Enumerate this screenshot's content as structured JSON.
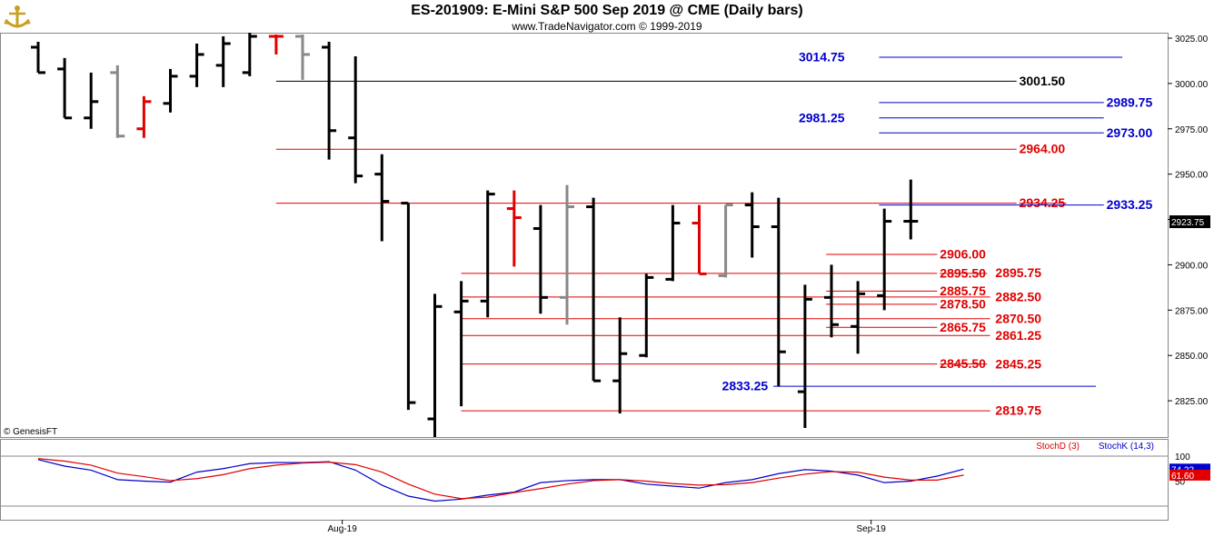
{
  "header": {
    "title": "ES-201909:  E-Mini S&P 500 Sep 2019 @ CME  (Daily bars)",
    "subtitle": "www.TradeNavigator.com © 1999-2019"
  },
  "copyright": "© GenesisFT",
  "colors": {
    "up": "#000000",
    "down": "#e00000",
    "neutral": "#888888",
    "support": "#e00000",
    "resist": "#0000cc",
    "stochK": "#0000cc",
    "stochD": "#e00000",
    "green": "#00c000"
  },
  "chart_data": [
    {
      "type": "ohlc",
      "title": "ES-201909:  E-Mini S&P 500 Sep 2019 @ CME  (Daily bars)",
      "ylim": [
        2805,
        3028
      ],
      "yticks": [
        "3025.00",
        "3000.00",
        "2975.00",
        "2950.00",
        "2925.00",
        "2900.00",
        "2875.00",
        "2850.00",
        "2825.00"
      ],
      "ytick_values": [
        3025,
        3000,
        2975,
        2950,
        2925,
        2900,
        2875,
        2850,
        2825
      ],
      "xticks": [
        {
          "label": "Aug-19",
          "index": 11.5
        },
        {
          "label": "Sep-19",
          "index": 31.5
        }
      ],
      "last_price": "2923.75",
      "bars": [
        {
          "o": 3020,
          "h": 3023,
          "l": 3006,
          "c": 3006,
          "col": "up"
        },
        {
          "o": 3008,
          "h": 3014,
          "l": 2981,
          "c": 2981,
          "col": "up"
        },
        {
          "o": 2981,
          "h": 3006,
          "l": 2975,
          "c": 2990,
          "col": "up"
        },
        {
          "o": 3006,
          "h": 3010,
          "l": 2970,
          "c": 2971,
          "col": "neutral"
        },
        {
          "o": 2975,
          "h": 2993,
          "l": 2970,
          "c": 2990,
          "col": "down"
        },
        {
          "o": 2989,
          "h": 3008,
          "l": 2984,
          "c": 3004,
          "col": "up"
        },
        {
          "o": 3004,
          "h": 3022,
          "l": 2998,
          "c": 3016,
          "col": "up"
        },
        {
          "o": 3010,
          "h": 3026,
          "l": 2998,
          "c": 3022,
          "col": "up"
        },
        {
          "o": 3006,
          "h": 3028,
          "l": 3004,
          "c": 3026,
          "col": "up"
        },
        {
          "o": 3026,
          "h": 3027,
          "l": 3016,
          "c": 3026,
          "col": "down"
        },
        {
          "o": 3026,
          "h": 3027,
          "l": 3002,
          "c": 3016,
          "col": "neutral"
        },
        {
          "o": 3020,
          "h": 3023,
          "l": 2958,
          "c": 2974,
          "col": "up"
        },
        {
          "o": 2970,
          "h": 3015,
          "l": 2945,
          "c": 2949,
          "col": "up"
        },
        {
          "o": 2950,
          "h": 2961,
          "l": 2913,
          "c": 2935,
          "col": "up"
        },
        {
          "o": 2934,
          "h": 2934,
          "l": 2820,
          "c": 2824,
          "col": "up"
        },
        {
          "o": 2815,
          "h": 2884,
          "l": 2805,
          "c": 2877,
          "col": "up"
        },
        {
          "o": 2874,
          "h": 2891,
          "l": 2822,
          "c": 2880,
          "col": "up"
        },
        {
          "o": 2880,
          "h": 2941,
          "l": 2871,
          "c": 2939,
          "col": "up"
        },
        {
          "o": 2931,
          "h": 2941,
          "l": 2899,
          "c": 2926,
          "col": "down"
        },
        {
          "o": 2920,
          "h": 2933,
          "l": 2873,
          "c": 2882,
          "col": "up"
        },
        {
          "o": 2882,
          "h": 2944,
          "l": 2867,
          "c": 2932,
          "col": "neutral"
        },
        {
          "o": 2932,
          "h": 2937,
          "l": 2836,
          "c": 2836,
          "col": "up"
        },
        {
          "o": 2836,
          "h": 2871,
          "l": 2818,
          "c": 2851,
          "col": "up"
        },
        {
          "o": 2850,
          "h": 2895,
          "l": 2849,
          "c": 2893,
          "col": "up"
        },
        {
          "o": 2892,
          "h": 2933,
          "l": 2891,
          "c": 2923,
          "col": "up"
        },
        {
          "o": 2923,
          "h": 2933,
          "l": 2895,
          "c": 2895,
          "col": "down"
        },
        {
          "o": 2894,
          "h": 2933,
          "l": 2893,
          "c": 2933,
          "col": "neutral"
        },
        {
          "o": 2933,
          "h": 2940,
          "l": 2904,
          "c": 2921,
          "col": "up"
        },
        {
          "o": 2921,
          "h": 2937,
          "l": 2833,
          "c": 2852,
          "col": "up"
        },
        {
          "o": 2830,
          "h": 2889,
          "l": 2810,
          "c": 2881,
          "col": "up"
        },
        {
          "o": 2882,
          "h": 2900,
          "l": 2860,
          "c": 2867,
          "col": "up"
        },
        {
          "o": 2866,
          "h": 2891,
          "l": 2851,
          "c": 2884,
          "col": "up"
        },
        {
          "o": 2883,
          "h": 2931,
          "l": 2875,
          "c": 2924,
          "col": "up"
        },
        {
          "o": 2924,
          "h": 2947,
          "l": 2914,
          "c": 2924,
          "col": "up"
        }
      ]
    },
    {
      "type": "line",
      "title": "",
      "ylim": [
        0,
        100
      ],
      "yticks": [
        "100",
        "50"
      ],
      "ytick_values": [
        100,
        50
      ],
      "series": [
        {
          "name": "StochK (14,3)",
          "color": "#0000cc",
          "last": "74.22",
          "values": [
            93,
            80,
            72,
            53,
            50,
            48,
            68,
            75,
            85,
            87,
            87,
            89,
            72,
            42,
            20,
            10,
            14,
            22,
            28,
            47,
            51,
            53,
            53,
            44,
            40,
            36,
            47,
            53,
            65,
            73,
            70,
            62,
            47,
            50,
            60,
            74
          ]
        },
        {
          "name": "StochD (3)",
          "color": "#e00000",
          "last": "61.60",
          "values": [
            95,
            90,
            82,
            66,
            59,
            51,
            55,
            63,
            75,
            82,
            86,
            88,
            83,
            68,
            44,
            24,
            15,
            18,
            27,
            35,
            44,
            51,
            53,
            50,
            45,
            42,
            43,
            47,
            56,
            64,
            69,
            68,
            58,
            52,
            52,
            62
          ]
        }
      ]
    }
  ],
  "levels": [
    {
      "label": "3014.75",
      "value": 3014.75,
      "color": "#0000cc",
      "from": 31.8,
      "to": 41,
      "lx": 30.5,
      "lside": "left"
    },
    {
      "label": "3001.50",
      "value": 3001.5,
      "color": "#000000",
      "from": 9,
      "to": 37,
      "lx": 37.1,
      "lside": "right"
    },
    {
      "label": "2989.75",
      "value": 2989.75,
      "color": "#0000cc",
      "from": 31.8,
      "to": 40.3,
      "lx": 40.4,
      "lside": "right"
    },
    {
      "label": "2981.25",
      "value": 2981.25,
      "color": "#0000cc",
      "from": 31.8,
      "to": 40.3,
      "lx": 30.5,
      "lside": "left"
    },
    {
      "label": "2973.00",
      "value": 2973.0,
      "color": "#0000cc",
      "from": 31.8,
      "to": 40.3,
      "lx": 40.4,
      "lside": "right"
    },
    {
      "label": "2964.00",
      "value": 2964.0,
      "color": "#e00000",
      "from": 9,
      "to": 37,
      "lx": 37.1,
      "lside": "right"
    },
    {
      "label": "2934.25",
      "value": 2934.25,
      "color": "#e00000",
      "from": 9,
      "to": 37,
      "lx": 37.1,
      "lside": "right",
      "strike": true
    },
    {
      "label": "2933.25",
      "value": 2933.25,
      "color": "#0000cc",
      "from": 31.8,
      "to": 40.3,
      "lx": 40.4,
      "lside": "right"
    },
    {
      "label": "2906.00",
      "value": 2906.0,
      "color": "#e00000",
      "from": 29.8,
      "to": 34,
      "lx": 34.1,
      "lside": "right"
    },
    {
      "label": "2895.50",
      "value": 2895.5,
      "color": "#e00000",
      "from": 16,
      "to": 34,
      "lx": 34.1,
      "lside": "right",
      "strike": true
    },
    {
      "label": "2895.75",
      "value": 2895.75,
      "color": "#e00000",
      "from": null,
      "to": null,
      "lx": 36.2,
      "lside": "right"
    },
    {
      "label": "2885.75",
      "value": 2885.75,
      "color": "#e00000",
      "from": 29.8,
      "to": 34,
      "lx": 34.1,
      "lside": "right"
    },
    {
      "label": "2882.50",
      "value": 2882.5,
      "color": "#e00000",
      "from": 16,
      "to": 36,
      "lx": 36.2,
      "lside": "right"
    },
    {
      "label": "2878.50",
      "value": 2878.5,
      "color": "#e00000",
      "from": 29.8,
      "to": 34,
      "lx": 34.1,
      "lside": "right"
    },
    {
      "label": "2870.50",
      "value": 2870.5,
      "color": "#e00000",
      "from": 16,
      "to": 36,
      "lx": 36.2,
      "lside": "right"
    },
    {
      "label": "2865.75",
      "value": 2865.75,
      "color": "#e00000",
      "from": 29.8,
      "to": 34,
      "lx": 34.1,
      "lside": "right"
    },
    {
      "label": "2861.25",
      "value": 2861.25,
      "color": "#e00000",
      "from": 16,
      "to": 36,
      "lx": 36.2,
      "lside": "right"
    },
    {
      "label": "2845.50",
      "value": 2845.5,
      "color": "#e00000",
      "from": 16,
      "to": 34,
      "lx": 34.1,
      "lside": "right",
      "strike": true
    },
    {
      "label": "2845.25",
      "value": 2845.25,
      "color": "#e00000",
      "from": null,
      "to": null,
      "lx": 36.2,
      "lside": "right"
    },
    {
      "label": "2833.25",
      "value": 2833.25,
      "color": "#0000cc",
      "from": 27.8,
      "to": 40,
      "lx": 27.6,
      "lside": "left"
    },
    {
      "label": "2819.75",
      "value": 2819.75,
      "color": "#e00000",
      "from": 16,
      "to": 36,
      "lx": 36.2,
      "lside": "right"
    }
  ]
}
